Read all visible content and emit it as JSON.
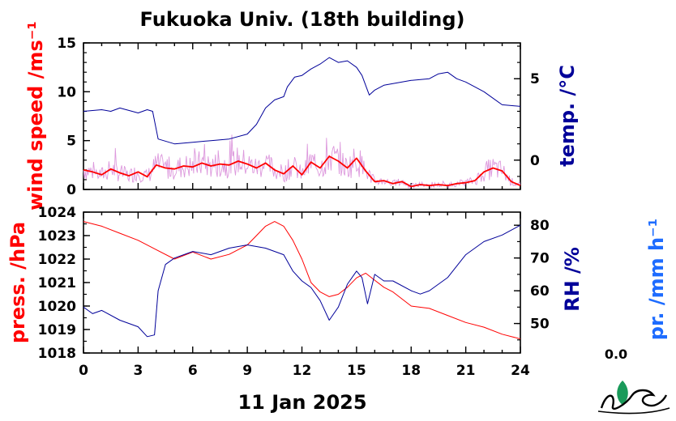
{
  "title": "Fukuoka Univ. (18th building)",
  "date_label": "11 Jan 2025",
  "colors": {
    "wind": "#ff0000",
    "wind_raw": "#dd99dd",
    "temp": "#000099",
    "press": "#ff0000",
    "rh": "#000099",
    "precip": "#1e6cff",
    "logo": "#1a9a5a"
  },
  "precip_value": "0.0",
  "chart_data": [
    {
      "type": "line",
      "title": "",
      "x_range": [
        0,
        24
      ],
      "x_ticks": [
        "0",
        "3",
        "6",
        "9",
        "12",
        "15",
        "18",
        "21",
        "24"
      ],
      "left_axis": {
        "label": "wind speed /ms⁻¹",
        "range": [
          0,
          15
        ],
        "ticks": [
          "0",
          "5",
          "10",
          "15"
        ]
      },
      "right_axis": {
        "label": "temp. /°C",
        "range": [
          -1.8,
          7.2
        ],
        "ticks": [
          "0",
          "5"
        ]
      },
      "series": [
        {
          "axis": "left",
          "x": [
            0,
            0.5,
            1,
            1.5,
            2,
            2.5,
            3,
            3.5,
            4,
            4.5,
            5,
            5.5,
            6,
            6.5,
            7,
            7.5,
            8,
            8.5,
            9,
            9.5,
            10,
            10.5,
            11,
            11.5,
            12,
            12.5,
            13,
            13.5,
            14,
            14.5,
            15,
            15.5,
            16,
            16.5,
            17,
            17.5,
            18,
            18.5,
            19,
            19.5,
            20,
            20.5,
            21,
            21.5,
            22,
            22.5,
            23,
            23.5,
            24
          ],
          "y": [
            2.0,
            1.8,
            1.5,
            2.1,
            1.7,
            1.4,
            1.8,
            1.3,
            2.5,
            2.2,
            2.1,
            2.4,
            2.3,
            2.7,
            2.4,
            2.6,
            2.5,
            2.9,
            2.6,
            2.2,
            2.7,
            2.0,
            1.6,
            2.4,
            1.5,
            2.8,
            2.2,
            3.4,
            2.9,
            2.2,
            3.2,
            1.9,
            0.8,
            0.9,
            0.6,
            0.8,
            0.3,
            0.5,
            0.4,
            0.5,
            0.4,
            0.6,
            0.7,
            0.9,
            1.8,
            2.2,
            1.9,
            0.8,
            0.4
          ]
        },
        {
          "axis": "right",
          "x": [
            0,
            1,
            1.5,
            2,
            3,
            3.5,
            3.8,
            4.1,
            5,
            6,
            7,
            8,
            9,
            9.5,
            10,
            10.5,
            11,
            11.2,
            11.6,
            12,
            12.5,
            13,
            13.5,
            14,
            14.5,
            15,
            15.3,
            15.7,
            16,
            16.5,
            17,
            18,
            19,
            19.5,
            20,
            20.5,
            21,
            22,
            23,
            24
          ],
          "y": [
            3.0,
            3.1,
            3.0,
            3.2,
            2.9,
            3.1,
            3.0,
            1.3,
            1.0,
            1.1,
            1.2,
            1.3,
            1.6,
            2.2,
            3.2,
            3.7,
            3.9,
            4.5,
            5.1,
            5.2,
            5.6,
            5.9,
            6.3,
            6.0,
            6.1,
            5.7,
            5.2,
            4.0,
            4.3,
            4.6,
            4.7,
            4.9,
            5.0,
            5.3,
            5.4,
            5.0,
            4.8,
            4.2,
            3.4,
            3.3
          ]
        }
      ]
    },
    {
      "type": "line",
      "title": "",
      "x_range": [
        0,
        24
      ],
      "x_ticks": [
        "0",
        "3",
        "6",
        "9",
        "12",
        "15",
        "18",
        "21",
        "24"
      ],
      "left_axis": {
        "label": "press. /hPa",
        "range": [
          1018,
          1024
        ],
        "ticks": [
          "1018",
          "1019",
          "1020",
          "1021",
          "1022",
          "1023",
          "1024"
        ]
      },
      "right_axis": {
        "label": "RH /%",
        "range": [
          41,
          84
        ],
        "ticks": [
          "50",
          "60",
          "70",
          "80"
        ]
      },
      "extra_axis": {
        "label": "pr. /mm h⁻¹"
      },
      "series": [
        {
          "axis": "left",
          "x": [
            0,
            1,
            2,
            3,
            4,
            5,
            6,
            7,
            8,
            9,
            9.5,
            10,
            10.5,
            11,
            11.5,
            12,
            12.5,
            13,
            13.5,
            14,
            14.5,
            15,
            15.5,
            16,
            16.5,
            17,
            18,
            19,
            20,
            21,
            22,
            23,
            24
          ],
          "y": [
            1023.6,
            1023.4,
            1023.1,
            1022.8,
            1022.4,
            1022.0,
            1022.3,
            1022.0,
            1022.2,
            1022.6,
            1023.0,
            1023.4,
            1023.6,
            1023.4,
            1022.8,
            1022.0,
            1021.0,
            1020.6,
            1020.4,
            1020.5,
            1020.8,
            1021.2,
            1021.4,
            1021.1,
            1020.8,
            1020.6,
            1020.0,
            1019.9,
            1019.6,
            1019.3,
            1019.1,
            1018.8,
            1018.6
          ]
        },
        {
          "axis": "right",
          "x": [
            0,
            0.5,
            1,
            2,
            3,
            3.5,
            3.9,
            4.1,
            4.5,
            5,
            6,
            7,
            8,
            9,
            10,
            11,
            11.5,
            12,
            12.5,
            13,
            13.5,
            14,
            14.5,
            15,
            15.3,
            15.6,
            16,
            16.5,
            17,
            18,
            18.5,
            19,
            20,
            21,
            22,
            23,
            24
          ],
          "y": [
            55,
            53,
            54,
            51,
            49,
            46,
            46.5,
            60,
            68,
            70,
            72,
            71,
            73,
            74,
            73,
            71,
            66,
            63,
            61,
            57,
            51,
            55,
            62,
            66,
            64,
            56,
            65,
            63,
            63,
            60,
            59,
            60,
            64,
            71,
            75,
            77,
            80
          ]
        }
      ]
    }
  ]
}
